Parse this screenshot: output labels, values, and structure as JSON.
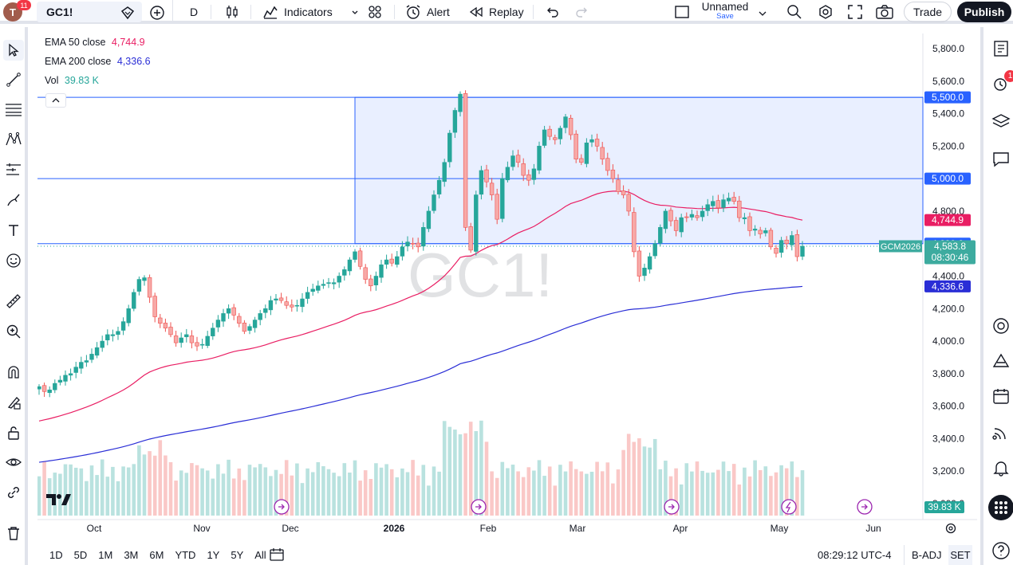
{
  "topbar": {
    "avatar_letter": "T",
    "notifications": "11",
    "symbol": "GC1!",
    "interval": "D",
    "indicators_label": "Indicators",
    "alert_label": "Alert",
    "replay_label": "Replay",
    "layout_name": "Unnamed",
    "save_label": "Save",
    "trade_label": "Trade",
    "publish_label": "Publish"
  },
  "legend": {
    "ema50_label": "EMA 50 close",
    "ema50_value": "4,744.9",
    "ema200_label": "EMA 200 close",
    "ema200_value": "4,336.6",
    "vol_label": "Vol",
    "vol_value": "39.83 K"
  },
  "colors": {
    "up": "#26a69a",
    "down": "#ef5350",
    "ema50": "#e91e63",
    "ema200": "#2a2ed6",
    "level": "#2962ff"
  },
  "right_sidebar": {
    "alert_badge": "1"
  },
  "chart_data": {
    "type": "candlestick",
    "watermark": "GC1!",
    "y_ticks": [
      "5,800.0",
      "5,600.0",
      "5,400.0",
      "5,200.0",
      "5,000.0",
      "4,800.0",
      "4,600.0",
      "4,400.0",
      "4,200.0",
      "4,000.0",
      "3,800.0",
      "3,600.0",
      "3,400.0",
      "3,200.0",
      "3,000.0"
    ],
    "x_ticks": [
      "Oct",
      "Nov",
      "Dec",
      "2026",
      "Feb",
      "Mar",
      "Apr",
      "May",
      "Jun"
    ],
    "ylim": [
      3000,
      5900
    ],
    "levels": [
      5500,
      5000,
      4600
    ],
    "zone": {
      "from": "Dec 22",
      "top": 5500,
      "bottom": 4600
    },
    "price_labels": {
      "level_5500": "5,500.0",
      "level_5000": "5,000.0",
      "ema50": "4,744.9",
      "level_4600": "4,600.0",
      "last_price": "4,583.8",
      "countdown": "08:30:46",
      "ema200": "4,336.6",
      "volume": "39.83 K",
      "contract": "GCM2026"
    },
    "closes": [
      3720,
      3690,
      3700,
      3740,
      3760,
      3790,
      3800,
      3840,
      3870,
      3880,
      3920,
      3960,
      4000,
      4040,
      4040,
      4060,
      4120,
      4200,
      4300,
      4380,
      4390,
      4270,
      4150,
      4110,
      4080,
      4040,
      3990,
      4020,
      4040,
      3990,
      3970,
      3980,
      4030,
      4080,
      4130,
      4170,
      4200,
      4160,
      4110,
      4060,
      4090,
      4130,
      4170,
      4200,
      4250,
      4260,
      4250,
      4220,
      4210,
      4220,
      4260,
      4300,
      4320,
      4340,
      4350,
      4360,
      4360,
      4400,
      4440,
      4500,
      4550,
      4460,
      4380,
      4340,
      4400,
      4470,
      4500,
      4480,
      4520,
      4580,
      4610,
      4600,
      4580,
      4700,
      4800,
      4900,
      4990,
      5100,
      5280,
      5420,
      5520,
      4700,
      4560,
      4900,
      5050,
      4980,
      4900,
      4750,
      5000,
      5070,
      5140,
      5100,
      5020,
      4990,
      5060,
      5200,
      5300,
      5260,
      5240,
      5310,
      5380,
      5270,
      5120,
      5100,
      5220,
      5240,
      5200,
      5120,
      5050,
      5000,
      4920,
      4900,
      4800,
      4550,
      4400,
      4450,
      4520,
      4600,
      4700,
      4800,
      4740,
      4680,
      4760,
      4760,
      4780,
      4760,
      4800,
      4840,
      4860,
      4820,
      4870,
      4880,
      4860,
      4760,
      4760,
      4680,
      4690,
      4660,
      4680,
      4580,
      4540,
      4620,
      4600,
      4650,
      4520,
      4584
    ],
    "ema50_end": 4744.9,
    "ema200_end": 4336.6,
    "volume_last": "39.83 K"
  },
  "bottombar": {
    "ranges": [
      "1D",
      "5D",
      "1M",
      "3M",
      "6M",
      "YTD",
      "1Y",
      "5Y",
      "All"
    ],
    "time": "08:29:12 UTC-4",
    "badj": "B-ADJ",
    "set": "SET"
  }
}
